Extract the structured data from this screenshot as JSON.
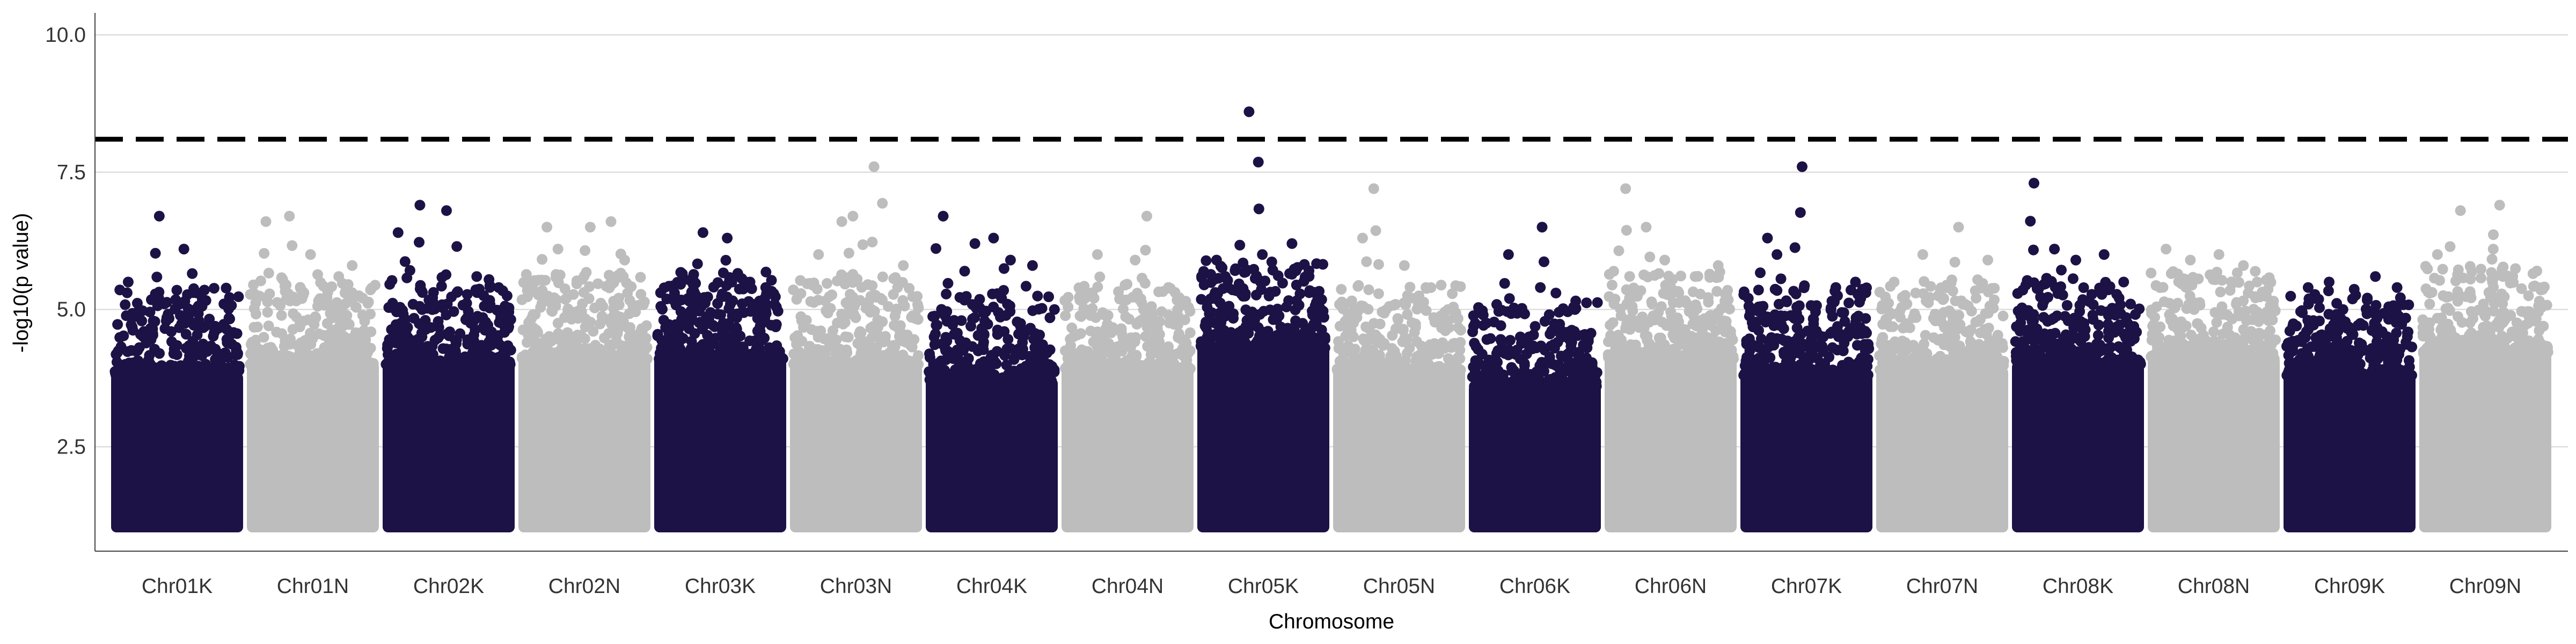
{
  "chart_data": {
    "type": "scatter",
    "subtype": "manhattan",
    "xlabel": "Chromosome",
    "ylabel": "-log10(p value)",
    "ylim": [
      0.6,
      10.4
    ],
    "yticks": [
      2.5,
      5.0,
      7.5,
      10.0
    ],
    "ytick_labels": [
      "2.5",
      "5.0",
      "7.5",
      "10.0"
    ],
    "grid": "horizontal major gridlines",
    "legend": "none",
    "threshold": {
      "value": 8.1,
      "style": "dashed",
      "color": "#000000"
    },
    "colors": {
      "odd": "#1d1245",
      "even": "#bdbdbd"
    },
    "chromosomes": [
      {
        "name": "Chr01K",
        "color": "#1d1245",
        "base_max": 4.1,
        "peaks": [
          5.5,
          6.7,
          6.1,
          5.3,
          5.1
        ],
        "bulk_min": 1.0
      },
      {
        "name": "Chr01N",
        "color": "#bdbdbd",
        "base_max": 4.3,
        "peaks": [
          6.6,
          6.7,
          6.0,
          5.6,
          5.8
        ],
        "bulk_min": 1.0
      },
      {
        "name": "Chr02K",
        "color": "#1d1245",
        "base_max": 4.3,
        "peaks": [
          6.4,
          6.9,
          6.8,
          5.6,
          5.4
        ],
        "bulk_min": 1.0
      },
      {
        "name": "Chr02N",
        "color": "#bdbdbd",
        "base_max": 4.4,
        "peaks": [
          6.5,
          6.1,
          6.5,
          6.6,
          5.9
        ],
        "bulk_min": 1.0
      },
      {
        "name": "Chr03K",
        "color": "#1d1245",
        "base_max": 4.4,
        "peaks": [
          5.3,
          6.4,
          6.3,
          5.5,
          5.4
        ],
        "bulk_min": 1.0
      },
      {
        "name": "Chr03N",
        "color": "#bdbdbd",
        "base_max": 4.3,
        "peaks": [
          6.0,
          6.6,
          6.7,
          7.6,
          5.8
        ],
        "bulk_min": 1.0
      },
      {
        "name": "Chr04K",
        "color": "#1d1245",
        "base_max": 4.0,
        "peaks": [
          6.7,
          6.2,
          6.3,
          5.9,
          5.8
        ],
        "bulk_min": 1.0
      },
      {
        "name": "Chr04N",
        "color": "#bdbdbd",
        "base_max": 4.2,
        "peaks": [
          5.3,
          6.0,
          5.9,
          6.7,
          5.2
        ],
        "bulk_min": 1.0
      },
      {
        "name": "Chr05K",
        "color": "#1d1245",
        "base_max": 4.6,
        "peaks": [
          5.9,
          8.6,
          6.0,
          6.2,
          5.6
        ],
        "bulk_min": 1.0
      },
      {
        "name": "Chr05N",
        "color": "#bdbdbd",
        "base_max": 4.2,
        "peaks": [
          6.3,
          7.2,
          5.8,
          5.4,
          5.0
        ],
        "bulk_min": 1.0
      },
      {
        "name": "Chr06K",
        "color": "#1d1245",
        "base_max": 3.9,
        "peaks": [
          4.9,
          6.0,
          6.5,
          5.3,
          4.6
        ],
        "bulk_min": 1.0
      },
      {
        "name": "Chr06N",
        "color": "#bdbdbd",
        "base_max": 4.4,
        "peaks": [
          7.2,
          6.5,
          5.9,
          5.6,
          5.8
        ],
        "bulk_min": 1.0
      },
      {
        "name": "Chr07K",
        "color": "#1d1245",
        "base_max": 4.1,
        "peaks": [
          6.3,
          6.0,
          7.6,
          5.4,
          5.5
        ],
        "bulk_min": 1.0
      },
      {
        "name": "Chr07N",
        "color": "#bdbdbd",
        "base_max": 4.2,
        "peaks": [
          5.5,
          6.0,
          5.2,
          6.5,
          5.9
        ],
        "bulk_min": 1.0
      },
      {
        "name": "Chr08K",
        "color": "#1d1245",
        "base_max": 4.3,
        "peaks": [
          7.3,
          6.1,
          5.9,
          6.0,
          5.5
        ],
        "bulk_min": 1.0
      },
      {
        "name": "Chr08N",
        "color": "#bdbdbd",
        "base_max": 4.4,
        "peaks": [
          6.1,
          5.9,
          6.0,
          5.8,
          5.5
        ],
        "bulk_min": 1.0
      },
      {
        "name": "Chr09K",
        "color": "#1d1245",
        "base_max": 4.1,
        "peaks": [
          5.4,
          5.5,
          5.0,
          5.6,
          5.4
        ],
        "bulk_min": 1.0
      },
      {
        "name": "Chr09N",
        "color": "#bdbdbd",
        "base_max": 4.5,
        "peaks": [
          6.0,
          6.8,
          6.1,
          6.9,
          5.7
        ],
        "bulk_min": 1.0
      }
    ]
  }
}
